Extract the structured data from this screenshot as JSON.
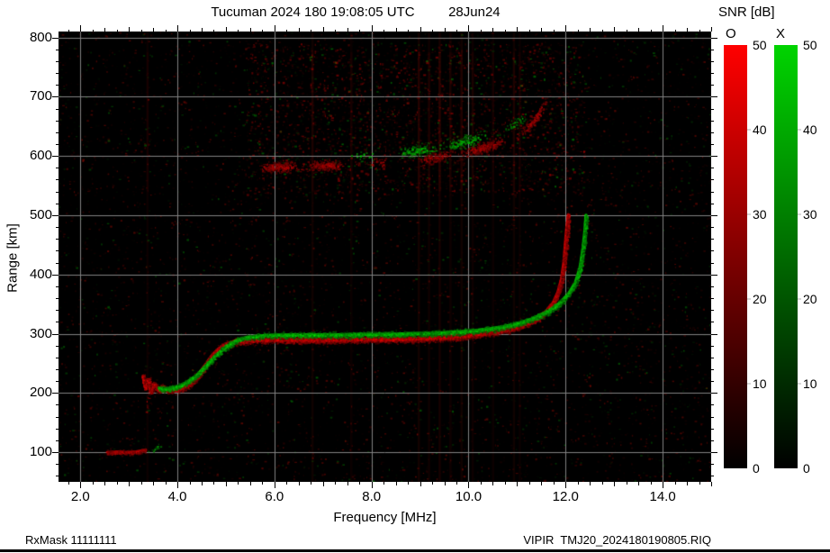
{
  "header": {
    "title": "Tucuman 2024 180 19:08:05 UTC         28Jun24"
  },
  "footer": {
    "left": "RxMask 11111111",
    "right": "VIPIR  TMJ20_2024180190805.RIQ"
  },
  "colorbar": {
    "label": "SNR [dB]",
    "o_label": "O",
    "x_label": "X",
    "min": 0,
    "max": 50,
    "ticks": [
      50,
      40,
      30,
      20,
      10,
      0
    ],
    "dash_levels": [
      40,
      30,
      20,
      10
    ],
    "o_color": "#ff0000",
    "x_color": "#00d400"
  },
  "chart_data": {
    "type": "heatmap",
    "title": "Tucuman 2024 180 19:08:05 UTC 28Jun24",
    "xlabel": "Frequency [MHz]",
    "ylabel": "Range [km]",
    "xlim": [
      1.55,
      15.0
    ],
    "ylim": [
      50,
      810
    ],
    "xticks": [
      2,
      4,
      6,
      8,
      10,
      12,
      14
    ],
    "xtick_labels": [
      "2.0",
      "4.0",
      "6.0",
      "8.0",
      "10.0",
      "12.0",
      "14.0"
    ],
    "yticks": [
      100,
      200,
      300,
      400,
      500,
      600,
      700,
      800
    ],
    "x_minor_step": 0.25,
    "y_minor_step": 20,
    "grid_color": "#828282",
    "background": "#000000",
    "snr_range": [
      0,
      50
    ],
    "rfi": [
      {
        "f": 3.38,
        "a": 0.08
      },
      {
        "f": 6.78,
        "a": 0.1
      },
      {
        "f": 7.58,
        "a": 0.08
      },
      {
        "f": 8.97,
        "a": 0.12
      },
      {
        "f": 9.18,
        "a": 0.1
      },
      {
        "f": 9.4,
        "a": 0.14
      },
      {
        "f": 9.62,
        "a": 0.09
      },
      {
        "f": 9.85,
        "a": 0.11
      },
      {
        "f": 10.08,
        "a": 0.09
      },
      {
        "f": 10.5,
        "a": 0.07
      },
      {
        "f": 10.93,
        "a": 0.1
      },
      {
        "f": 11.05,
        "a": 0.07
      }
    ],
    "series": [
      {
        "name": "E-region echo (O)",
        "mode": "O",
        "spread_km": 4,
        "density": 5,
        "brightness": 220,
        "core": true,
        "patchy": false,
        "points": [
          [
            2.55,
            100
          ],
          [
            2.75,
            101
          ],
          [
            2.95,
            100
          ],
          [
            3.15,
            101
          ],
          [
            3.35,
            104
          ]
        ]
      },
      {
        "name": "E-region echo (X)",
        "mode": "X",
        "spread_km": 4,
        "density": 2,
        "brightness": 200,
        "core": false,
        "patchy": true,
        "points": [
          [
            3.3,
            97
          ],
          [
            3.42,
            101
          ],
          [
            3.55,
            107
          ],
          [
            3.68,
            112
          ]
        ]
      },
      {
        "name": "spread-F streak (O)",
        "mode": "O",
        "spread_km": 5,
        "density": 3,
        "brightness": 190,
        "core": false,
        "patchy": true,
        "points": [
          [
            3.36,
            168
          ],
          [
            3.38,
            195
          ],
          [
            3.41,
            222
          ]
        ]
      },
      {
        "name": "spread-F streak (X)",
        "mode": "X",
        "spread_km": 6,
        "density": 2.5,
        "brightness": 200,
        "core": false,
        "patchy": true,
        "points": [
          [
            3.43,
            126
          ],
          [
            3.45,
            162
          ],
          [
            3.47,
            198
          ]
        ]
      },
      {
        "name": "F trace 1st hop (O)",
        "mode": "O",
        "spread_km": 6,
        "density": 7,
        "brightness": 255,
        "core": true,
        "patchy": false,
        "points": [
          [
            3.3,
            228
          ],
          [
            3.34,
            210
          ],
          [
            3.4,
            222
          ],
          [
            3.46,
            203
          ],
          [
            3.52,
            215
          ],
          [
            3.6,
            205
          ],
          [
            3.7,
            210
          ],
          [
            3.8,
            204
          ],
          [
            3.9,
            207
          ],
          [
            4.0,
            206
          ],
          [
            4.1,
            210
          ],
          [
            4.25,
            216
          ],
          [
            4.4,
            226
          ],
          [
            4.55,
            243
          ],
          [
            4.7,
            261
          ],
          [
            4.85,
            274
          ],
          [
            5.0,
            282
          ],
          [
            5.2,
            287
          ],
          [
            5.5,
            289
          ],
          [
            6.0,
            290
          ],
          [
            6.5,
            290
          ],
          [
            7.0,
            290
          ],
          [
            7.5,
            290
          ],
          [
            8.0,
            291
          ],
          [
            8.5,
            291
          ],
          [
            9.0,
            292
          ],
          [
            9.5,
            294
          ],
          [
            10.0,
            297
          ],
          [
            10.4,
            301
          ],
          [
            10.8,
            307
          ],
          [
            11.1,
            314
          ],
          [
            11.4,
            325
          ],
          [
            11.6,
            337
          ],
          [
            11.75,
            352
          ],
          [
            11.85,
            370
          ],
          [
            11.92,
            392
          ],
          [
            11.97,
            420
          ],
          [
            12.0,
            450
          ],
          [
            12.03,
            478
          ],
          [
            12.06,
            500
          ]
        ]
      },
      {
        "name": "F trace 1st hop (X)",
        "mode": "X",
        "spread_km": 5,
        "density": 5,
        "brightness": 235,
        "core": true,
        "patchy": false,
        "points": [
          [
            3.62,
            208
          ],
          [
            3.75,
            206
          ],
          [
            3.9,
            209
          ],
          [
            4.05,
            212
          ],
          [
            4.2,
            218
          ],
          [
            4.4,
            230
          ],
          [
            4.6,
            247
          ],
          [
            4.8,
            264
          ],
          [
            5.0,
            278
          ],
          [
            5.2,
            288
          ],
          [
            5.45,
            294
          ],
          [
            5.8,
            297
          ],
          [
            6.3,
            298
          ],
          [
            6.8,
            298
          ],
          [
            7.3,
            298
          ],
          [
            7.8,
            299
          ],
          [
            8.3,
            299
          ],
          [
            8.8,
            300
          ],
          [
            9.3,
            301
          ],
          [
            9.8,
            303
          ],
          [
            10.2,
            306
          ],
          [
            10.6,
            310
          ],
          [
            11.0,
            317
          ],
          [
            11.3,
            325
          ],
          [
            11.6,
            336
          ],
          [
            11.85,
            350
          ],
          [
            12.05,
            366
          ],
          [
            12.2,
            386
          ],
          [
            12.3,
            412
          ],
          [
            12.36,
            445
          ],
          [
            12.4,
            475
          ],
          [
            12.42,
            500
          ]
        ]
      },
      {
        "name": "F trace 2nd hop (O)",
        "mode": "O",
        "spread_km": 9,
        "density": 5,
        "brightness": 215,
        "core": false,
        "patchy": true,
        "points": [
          [
            5.55,
            580
          ],
          [
            5.8,
            581
          ],
          [
            6.1,
            582
          ],
          [
            6.4,
            582
          ],
          [
            6.7,
            583
          ],
          [
            7.0,
            584
          ],
          [
            7.3,
            585
          ],
          [
            7.6,
            586
          ],
          [
            7.9,
            587
          ],
          [
            8.2,
            589
          ],
          [
            8.5,
            591
          ],
          [
            8.8,
            593
          ],
          [
            9.1,
            596
          ],
          [
            9.4,
            599
          ],
          [
            9.7,
            603
          ],
          [
            10.0,
            608
          ],
          [
            10.3,
            614
          ],
          [
            10.6,
            622
          ],
          [
            10.9,
            632
          ],
          [
            11.15,
            645
          ],
          [
            11.35,
            660
          ],
          [
            11.5,
            678
          ],
          [
            11.6,
            700
          ],
          [
            11.67,
            725
          ],
          [
            11.72,
            755
          ]
        ]
      },
      {
        "name": "F trace 2nd hop (X)",
        "mode": "X",
        "spread_km": 10,
        "density": 3,
        "brightness": 225,
        "core": false,
        "patchy": true,
        "points": [
          [
            7.4,
            596
          ],
          [
            7.7,
            600
          ],
          [
            8.0,
            603
          ],
          [
            8.3,
            607
          ],
          [
            8.6,
            605
          ],
          [
            8.9,
            610
          ],
          [
            9.2,
            613
          ],
          [
            9.5,
            617
          ],
          [
            9.8,
            622
          ],
          [
            10.1,
            628
          ],
          [
            10.4,
            636
          ],
          [
            10.7,
            646
          ],
          [
            11.0,
            658
          ],
          [
            11.25,
            672
          ],
          [
            11.45,
            690
          ],
          [
            11.58,
            712
          ],
          [
            11.68,
            738
          ]
        ]
      }
    ]
  }
}
